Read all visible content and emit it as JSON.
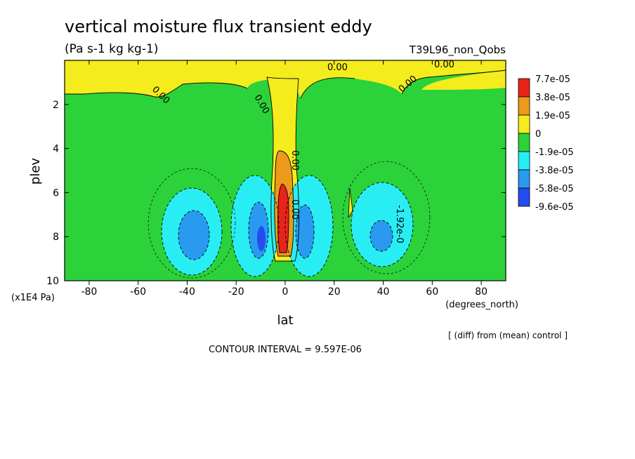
{
  "chart_data": {
    "type": "heatmap",
    "title": "vertical moisture flux transient eddy",
    "units": "(Pa s-1 kg kg-1)",
    "run_label": "T39L96_non_Qobs",
    "xlabel": "lat",
    "x_unit": "(degrees_north)",
    "ylabel": "plev",
    "y_unit": "(x1E4 Pa)",
    "xlim": [
      -90,
      90
    ],
    "ylim": [
      10,
      0
    ],
    "x_ticks": [
      -80,
      -60,
      -40,
      -20,
      0,
      20,
      40,
      60,
      80
    ],
    "y_ticks": [
      2,
      4,
      6,
      8,
      10
    ],
    "legend": {
      "position": "right",
      "labels": [
        "7.7e-05",
        "3.8e-05",
        "1.9e-05",
        "0",
        "-1.9e-05",
        "-3.8e-05",
        "-5.8e-05",
        "-9.6e-05"
      ],
      "colors": [
        "#e8241a",
        "#ec9a1c",
        "#f4ec1c",
        "#2cd23a",
        "#28eef4",
        "#2a9af0",
        "#244cf0"
      ]
    },
    "contour_labels": [
      "0.00",
      "0.00",
      "0.00",
      "0.00",
      "0.00",
      "0.00",
      "0.00",
      "-1.92e-0"
    ],
    "contour_interval_text": "CONTOUR INTERVAL = 9.597E-06",
    "diff_note": "[ (diff) from (mean) control ]",
    "regions": [
      {
        "level": "positive_max",
        "lat": [
          -3,
          3
        ],
        "plev": [
          6,
          9
        ]
      },
      {
        "level": "positive",
        "lat": [
          -6,
          6
        ],
        "plev": [
          2.5,
          9
        ]
      },
      {
        "level": "negative_strong",
        "lat": [
          -40,
          -35
        ],
        "plev": [
          7.5,
          9
        ]
      },
      {
        "level": "negative_strong",
        "lat": [
          38,
          42
        ],
        "plev": [
          7.5,
          9
        ]
      },
      {
        "level": "negative",
        "lat": [
          -48,
          -30
        ],
        "plev": [
          6,
          9.5
        ]
      },
      {
        "level": "negative",
        "lat": [
          -18,
          -5
        ],
        "plev": [
          6,
          9.7
        ]
      },
      {
        "level": "negative",
        "lat": [
          5,
          18
        ],
        "plev": [
          6,
          9.7
        ]
      },
      {
        "level": "negative",
        "lat": [
          28,
          50
        ],
        "plev": [
          6,
          9.5
        ]
      }
    ]
  }
}
